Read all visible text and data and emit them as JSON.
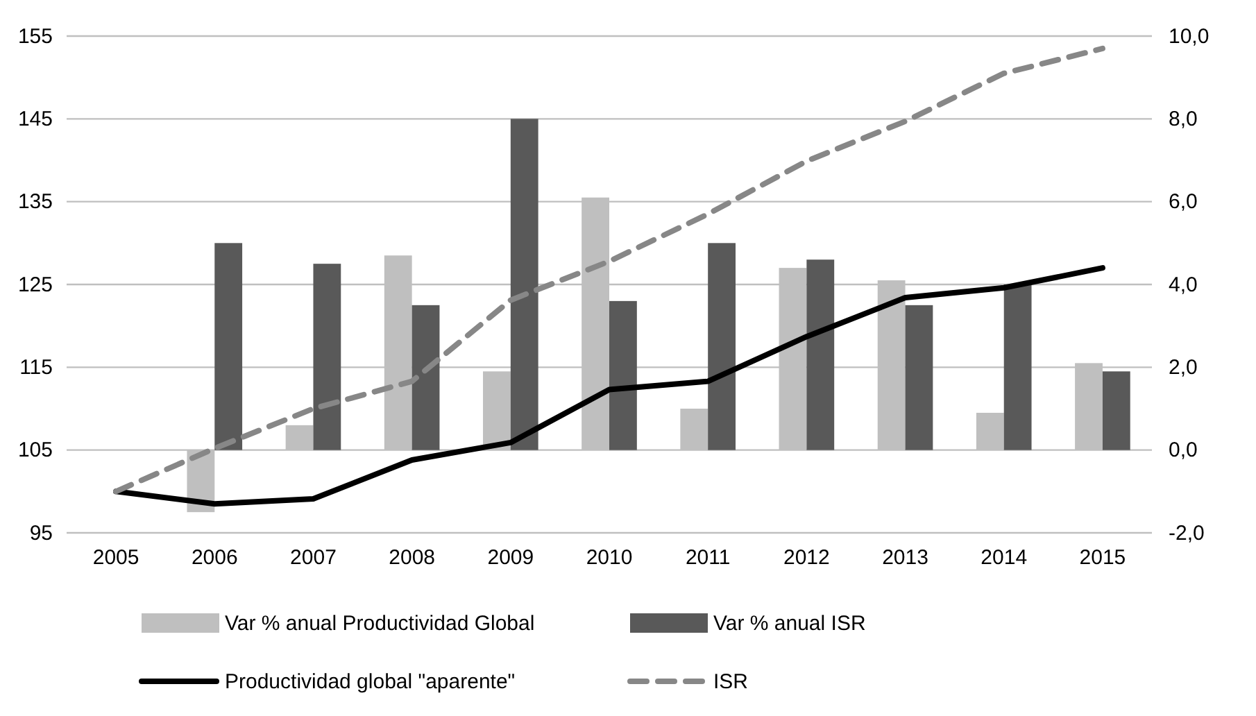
{
  "chart_data": {
    "type": "bar",
    "categories": [
      "2005",
      "2006",
      "2007",
      "2008",
      "2009",
      "2010",
      "2011",
      "2012",
      "2013",
      "2014",
      "2015"
    ],
    "series": [
      {
        "name": "Var % anual Productividad Global",
        "axis": "y2",
        "color": "#bfbfbf",
        "values": [
          null,
          -1.5,
          0.6,
          4.7,
          1.9,
          6.1,
          1.0,
          4.4,
          4.1,
          0.9,
          2.1
        ]
      },
      {
        "name": "Var % anual ISR",
        "axis": "y2",
        "color": "#595959",
        "values": [
          null,
          5.0,
          4.5,
          3.5,
          8.0,
          3.6,
          5.0,
          4.6,
          3.5,
          4.0,
          1.9
        ]
      },
      {
        "name": "Productividad global \"aparente\"",
        "type": "line",
        "color": "#000000",
        "line_style": "solid",
        "values": [
          100,
          98.5,
          99.1,
          103.8,
          105.9,
          112.3,
          113.3,
          118.7,
          123.4,
          124.6,
          127.0
        ]
      },
      {
        "name": "ISR",
        "type": "line",
        "color": "#878787",
        "line_style": "dashed",
        "values": [
          100,
          105.2,
          110.0,
          113.3,
          123.1,
          127.8,
          133.5,
          139.9,
          144.7,
          150.5,
          153.5
        ]
      }
    ],
    "ylim": [
      95,
      155
    ],
    "yticks": [
      95,
      105,
      115,
      125,
      135,
      145,
      155
    ],
    "y2lim": [
      -2,
      10
    ],
    "y2ticks": [
      {
        "value": -2,
        "label": "-2,0"
      },
      {
        "value": 0,
        "label": "0,0"
      },
      {
        "value": 2,
        "label": "2,0"
      },
      {
        "value": 4,
        "label": "4,0"
      },
      {
        "value": 6,
        "label": "6,0"
      },
      {
        "value": 8,
        "label": "8,0"
      },
      {
        "value": 10,
        "label": "10,0"
      }
    ],
    "grid": "y",
    "legend": "bottom",
    "marker": "none"
  }
}
